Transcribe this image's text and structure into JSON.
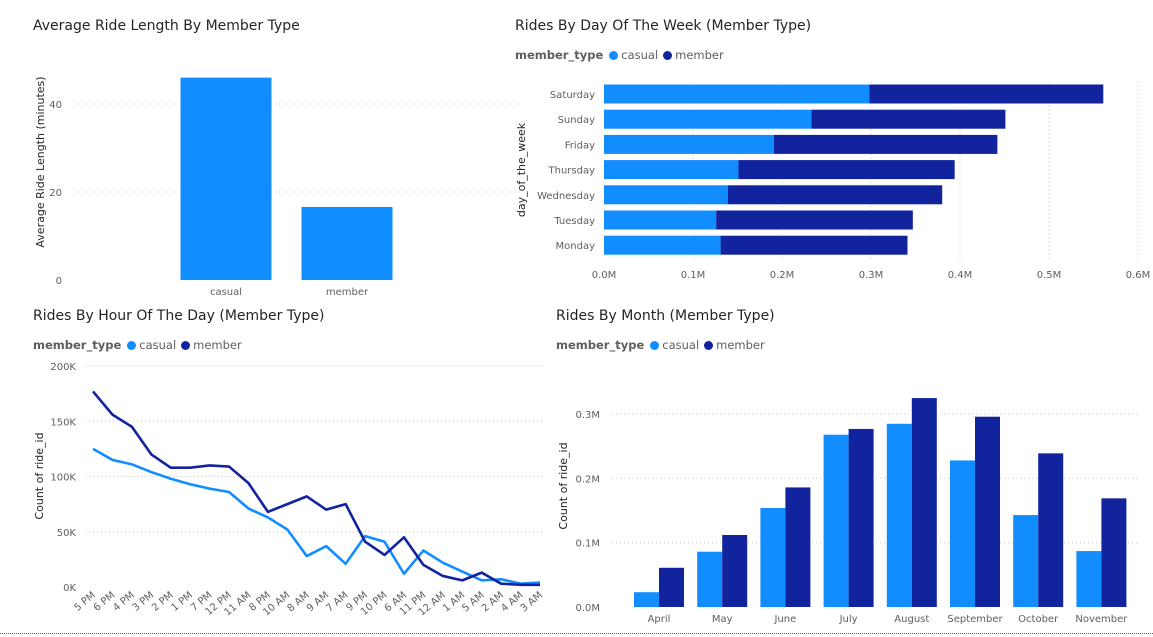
{
  "colors": {
    "casual": "#118dff",
    "member": "#12239e"
  },
  "chart_data": [
    {
      "type": "bar",
      "title": "Average Ride Length By Member Type",
      "categories": [
        "casual",
        "member"
      ],
      "values": [
        46,
        16.6
      ],
      "xlabel": "",
      "ylabel": "Average Ride Length (minutes)",
      "ylim": [
        0,
        50
      ],
      "yticks": [
        0,
        20,
        40
      ],
      "ytick_labels": [
        "0",
        "20",
        "40"
      ],
      "grid": true
    },
    {
      "type": "bar",
      "orientation": "horizontal",
      "stacked": true,
      "title": "Rides By Day Of The Week (Member Type)",
      "legend_title": "member_type",
      "categories": [
        "Saturday",
        "Sunday",
        "Friday",
        "Thursday",
        "Wednesday",
        "Tuesday",
        "Monday"
      ],
      "series": [
        {
          "name": "casual",
          "values": [
            0.298,
            0.233,
            0.191,
            0.151,
            0.139,
            0.126,
            0.131
          ]
        },
        {
          "name": "member",
          "values": [
            0.263,
            0.218,
            0.251,
            0.243,
            0.241,
            0.221,
            0.21
          ]
        }
      ],
      "ylabel": "day_of_the_week",
      "xlabel": "",
      "xlim": [
        0,
        0.6
      ],
      "xticks": [
        0,
        0.1,
        0.2,
        0.3,
        0.4,
        0.5,
        0.6
      ],
      "xtick_labels": [
        "0.0M",
        "0.1M",
        "0.2M",
        "0.3M",
        "0.4M",
        "0.5M",
        "0.6M"
      ],
      "grid": true
    },
    {
      "type": "line",
      "title": "Rides By Hour Of The Day (Member Type)",
      "legend_title": "member_type",
      "categories": [
        "5 PM",
        "6 PM",
        "4 PM",
        "3 PM",
        "2 PM",
        "1 PM",
        "7 PM",
        "12 PM",
        "11 AM",
        "8 PM",
        "10 AM",
        "8 AM",
        "9 AM",
        "7 AM",
        "9 PM",
        "10 PM",
        "6 AM",
        "11 PM",
        "12 AM",
        "1 AM",
        "5 AM",
        "2 AM",
        "4 AM",
        "3 AM"
      ],
      "series": [
        {
          "name": "casual",
          "values": [
            125,
            115,
            111,
            104,
            98,
            93,
            89,
            86,
            71,
            63,
            52,
            28,
            37,
            21,
            46,
            41,
            12,
            33,
            22,
            14,
            6,
            7,
            3,
            4
          ]
        },
        {
          "name": "member",
          "values": [
            177,
            156,
            145,
            120,
            108,
            108,
            110,
            109,
            94,
            68,
            75,
            82,
            70,
            75,
            41,
            29,
            45,
            20,
            10,
            6,
            13,
            3,
            2,
            2
          ]
        }
      ],
      "xlabel": "",
      "ylabel": "Count of ride_id",
      "ylim": [
        0,
        200
      ],
      "yticks": [
        0,
        50,
        100,
        150,
        200
      ],
      "ytick_labels": [
        "0K",
        "50K",
        "100K",
        "150K",
        "200K"
      ],
      "grid": true
    },
    {
      "type": "bar",
      "title": "Rides By Month (Member Type)",
      "legend_title": "member_type",
      "categories": [
        "April",
        "May",
        "June",
        "July",
        "August",
        "September",
        "October",
        "November"
      ],
      "series": [
        {
          "name": "casual",
          "values": [
            0.023,
            0.086,
            0.154,
            0.268,
            0.285,
            0.228,
            0.143,
            0.087
          ]
        },
        {
          "name": "member",
          "values": [
            0.061,
            0.112,
            0.186,
            0.277,
            0.325,
            0.296,
            0.239,
            0.169
          ]
        }
      ],
      "xlabel": "",
      "ylabel": "Count of ride_id",
      "ylim": [
        0,
        0.35
      ],
      "yticks": [
        0,
        0.1,
        0.2,
        0.3
      ],
      "ytick_labels": [
        "0.0M",
        "0.1M",
        "0.2M",
        "0.3M"
      ],
      "grid": true
    }
  ]
}
